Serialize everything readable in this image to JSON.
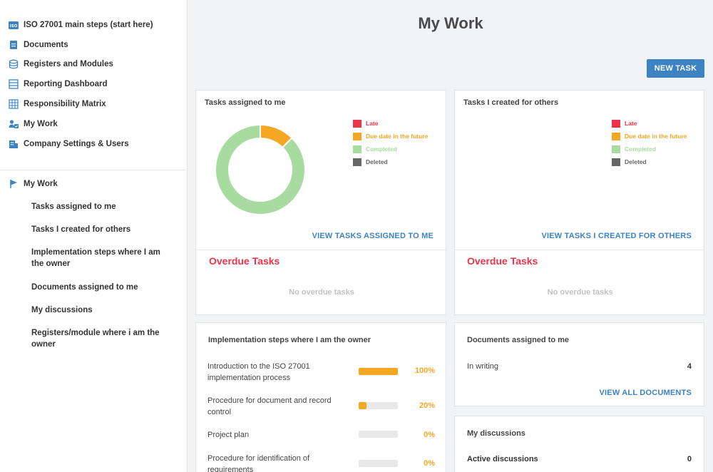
{
  "sidebar": {
    "nav": [
      {
        "label": "ISO 27001 main steps (start here)",
        "icon": "iso-badge-icon"
      },
      {
        "label": "Documents",
        "icon": "document-icon"
      },
      {
        "label": "Registers and Modules",
        "icon": "database-icon"
      },
      {
        "label": "Reporting Dashboard",
        "icon": "list-icon"
      },
      {
        "label": "Responsibility Matrix",
        "icon": "grid-icon"
      },
      {
        "label": "My Work",
        "icon": "user-check-icon"
      },
      {
        "label": "Company Settings & Users",
        "icon": "building-icon"
      }
    ],
    "section": {
      "label": "My Work",
      "icon": "flag-icon"
    },
    "sub_items": [
      "Tasks assigned to me",
      "Tasks I created for others",
      "Implementation steps where I am the owner",
      "Documents assigned to me",
      "My discussions",
      "Registers/module where i am the owner"
    ],
    "iso_badge": "ISO"
  },
  "header": {
    "title": "My Work",
    "new_task": "NEW TASK"
  },
  "colors": {
    "late": "#ee3449",
    "future": "#f5a623",
    "completed": "#a8dba0",
    "deleted": "#666666",
    "accent": "#3d82c4"
  },
  "legend": [
    "Late",
    "Due date in the future",
    "Completed",
    "Deleted"
  ],
  "tasks_assigned": {
    "title": "Tasks assigned to me",
    "link": "VIEW TASKS ASSIGNED TO ME",
    "overdue_title": "Overdue Tasks",
    "overdue_empty": "No overdue tasks",
    "chart_data": {
      "type": "pie",
      "categories": [
        "Late",
        "Due date in the future",
        "Completed",
        "Deleted"
      ],
      "values": [
        0,
        1,
        7,
        0
      ]
    }
  },
  "tasks_created": {
    "title": "Tasks I created for others",
    "link": "VIEW TASKS I CREATED FOR OTHERS",
    "overdue_title": "Overdue Tasks",
    "overdue_empty": "No overdue tasks"
  },
  "implementation": {
    "title": "Implementation steps where I am the owner",
    "steps": [
      {
        "label": "Introduction to the ISO 27001 implementation process",
        "progress": 100,
        "pct_label": "100%"
      },
      {
        "label": "Procedure for document and record control",
        "progress": 20,
        "pct_label": "20%"
      },
      {
        "label": "Project plan",
        "progress": 0,
        "pct_label": "0%"
      },
      {
        "label": "Procedure for identification of requirements",
        "progress": 0,
        "pct_label": "0%"
      }
    ]
  },
  "documents": {
    "title": "Documents assigned to me",
    "rows": [
      {
        "label": "In writing",
        "value": "4"
      }
    ],
    "link": "VIEW ALL DOCUMENTS"
  },
  "discussions": {
    "title": "My discussions",
    "rows": [
      {
        "label": "Active discussions",
        "value": "0"
      }
    ]
  }
}
